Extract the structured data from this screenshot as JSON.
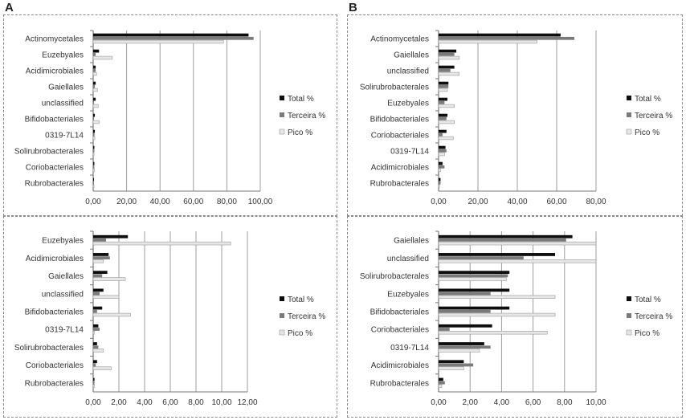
{
  "panels": {
    "a": "A",
    "b": "B"
  },
  "colors": {
    "total": "#0d0d0d",
    "terceira": "#7a7a7a",
    "pico": "#e6e6e6",
    "pico_stroke": "#9a9a9a",
    "grid": "#9c9c9c",
    "axis": "#777777"
  },
  "chart_data": [
    {
      "id": "A-top",
      "type": "bar",
      "orientation": "horizontal",
      "categories": [
        "Actinomycetales",
        "Euzebyales",
        "Acidimicrobiales",
        "Gaiellales",
        "unclassified",
        "Bifidobacteriales",
        "0319-7L14",
        "Solirubrobacterales",
        "Coriobacteriales",
        "Rubrobacterales"
      ],
      "series": [
        {
          "name": "Total %",
          "values": [
            93.0,
            3.5,
            1.5,
            1.5,
            1.5,
            1.0,
            1.0,
            0.7,
            0.7,
            0.5
          ]
        },
        {
          "name": "Terceira %",
          "values": [
            96.0,
            1.5,
            1.5,
            1.0,
            0.5,
            0.5,
            0.8,
            0.7,
            0.7,
            0.5
          ]
        },
        {
          "name": "Pico %",
          "values": [
            78.0,
            11.5,
            2.0,
            2.5,
            3.0,
            3.5,
            1.0,
            0.5,
            0.8,
            0.5
          ]
        }
      ],
      "xlim": [
        0,
        100
      ],
      "ticks": [
        "0,00",
        "20,00",
        "40,00",
        "60,00",
        "80,00",
        "100,00"
      ],
      "legend": "right"
    },
    {
      "id": "B-top",
      "type": "bar",
      "orientation": "horizontal",
      "categories": [
        "Actinomycetales",
        "Gaiellales",
        "unclassified",
        "Solirubrobacterales",
        "Euzebyales",
        "Bifidobacteriales",
        "Coriobacteriales",
        "0319-7L14",
        "Acidimicrobiales",
        "Rubrobacterales"
      ],
      "series": [
        {
          "name": "Total %",
          "values": [
            62.0,
            9.0,
            8.0,
            5.0,
            4.5,
            4.5,
            4.0,
            3.5,
            2.0,
            1.0
          ]
        },
        {
          "name": "Terceira %",
          "values": [
            69.0,
            8.0,
            6.0,
            5.0,
            3.0,
            4.0,
            2.0,
            4.0,
            3.0,
            1.0
          ]
        },
        {
          "name": "Pico %",
          "values": [
            50.0,
            10.5,
            10.5,
            4.5,
            8.0,
            8.0,
            7.5,
            3.0,
            1.0,
            0.5
          ]
        }
      ],
      "xlim": [
        0,
        80
      ],
      "ticks": [
        "0,00",
        "20,00",
        "40,00",
        "60,00",
        "80,00"
      ],
      "legend": "right"
    },
    {
      "id": "A-bottom",
      "type": "bar",
      "orientation": "horizontal",
      "categories": [
        "Euzebyales",
        "Acidimicrobiales",
        "Gaiellales",
        "unclassified",
        "Bifidobacteriales",
        "0319-7L14",
        "Solirubrobacterales",
        "Coriobacteriales",
        "Rubrobacterales"
      ],
      "series": [
        {
          "name": "Total %",
          "values": [
            2.7,
            1.2,
            1.1,
            0.8,
            0.7,
            0.4,
            0.3,
            0.3,
            0.1
          ]
        },
        {
          "name": "Terceira %",
          "values": [
            1.0,
            1.3,
            0.7,
            0.5,
            0.3,
            0.5,
            0.4,
            0.2,
            0.1
          ]
        },
        {
          "name": "Pico %",
          "values": [
            10.7,
            0.8,
            2.5,
            2.0,
            2.9,
            0.1,
            0.8,
            1.4,
            0.1
          ]
        }
      ],
      "xlim": [
        0,
        12
      ],
      "ticks": [
        "0,00",
        "2,00",
        "4,00",
        "6,00",
        "8,00",
        "10,00",
        "12,00"
      ],
      "legend": "right"
    },
    {
      "id": "B-bottom",
      "type": "bar",
      "orientation": "horizontal",
      "categories": [
        "Gaiellales",
        "unclassified",
        "Solirubrobacterales",
        "Euzebyales",
        "Bifidobacteriales",
        "Coriobacteriales",
        "0319-7L14",
        "Acidimicrobiales",
        "Rubrobacterales"
      ],
      "series": [
        {
          "name": "Total %",
          "values": [
            8.5,
            7.4,
            4.5,
            4.5,
            4.5,
            3.4,
            2.9,
            1.6,
            0.3
          ]
        },
        {
          "name": "Terceira %",
          "values": [
            8.1,
            5.4,
            4.4,
            3.3,
            3.3,
            0.7,
            3.3,
            2.2,
            0.4
          ]
        },
        {
          "name": "Pico %",
          "values": [
            10.0,
            10.0,
            4.3,
            7.4,
            7.4,
            6.9,
            2.6,
            1.6,
            0.2
          ]
        }
      ],
      "xlim": [
        0,
        10
      ],
      "ticks": [
        "0,00",
        "2,00",
        "4,00",
        "6,00",
        "8,00",
        "10,00"
      ],
      "legend": "right"
    }
  ]
}
